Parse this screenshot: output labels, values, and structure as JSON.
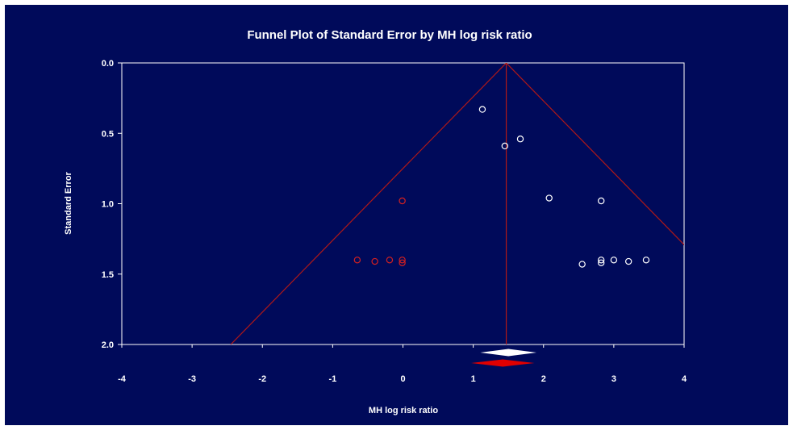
{
  "chart_data": {
    "type": "scatter",
    "title": "Funnel Plot of Standard Error by MH log risk ratio",
    "xlabel": "MH log risk ratio",
    "ylabel": "Standard Error",
    "xlim": [
      -4,
      4
    ],
    "ylim": [
      0,
      2
    ],
    "y_inverted": true,
    "x_ticks": [
      "-4",
      "-3",
      "-2",
      "-1",
      "0",
      "1",
      "2",
      "3",
      "4"
    ],
    "y_ticks": [
      "0.0",
      "0.5",
      "1.0",
      "1.5",
      "2.0"
    ],
    "grid": false,
    "summary_effect": 1.47,
    "funnel_z": 1.96,
    "colors": {
      "background": "#000a5a",
      "plot_area_border": "#ffffff",
      "funnel_lines": "#b01818",
      "observed_points": "#ffffff",
      "imputed_points": "#d42020",
      "observed_diamond": "#ffffff",
      "imputed_diamond": "#e00000",
      "text": "#ffffff"
    },
    "series": [
      {
        "role": "observed",
        "points": [
          {
            "x": 1.13,
            "y": 0.33
          },
          {
            "x": 1.67,
            "y": 0.54
          },
          {
            "x": 1.45,
            "y": 0.59
          },
          {
            "x": 2.08,
            "y": 0.96
          },
          {
            "x": 2.82,
            "y": 0.98
          },
          {
            "x": 2.55,
            "y": 1.43
          },
          {
            "x": 2.82,
            "y": 1.4
          },
          {
            "x": 2.82,
            "y": 1.42
          },
          {
            "x": 3.0,
            "y": 1.4
          },
          {
            "x": 3.21,
            "y": 1.41
          },
          {
            "x": 3.46,
            "y": 1.4
          }
        ]
      },
      {
        "role": "imputed",
        "points": [
          {
            "x": -0.01,
            "y": 0.98
          },
          {
            "x": -0.65,
            "y": 1.4
          },
          {
            "x": -0.4,
            "y": 1.41
          },
          {
            "x": -0.19,
            "y": 1.4
          },
          {
            "x": -0.01,
            "y": 1.4
          },
          {
            "x": -0.01,
            "y": 1.42
          }
        ]
      }
    ],
    "diamonds": [
      {
        "role": "observed",
        "center": 1.5,
        "lower": 1.1,
        "upper": 1.9
      },
      {
        "role": "imputed",
        "center": 1.42,
        "lower": 0.97,
        "upper": 1.87
      }
    ]
  }
}
